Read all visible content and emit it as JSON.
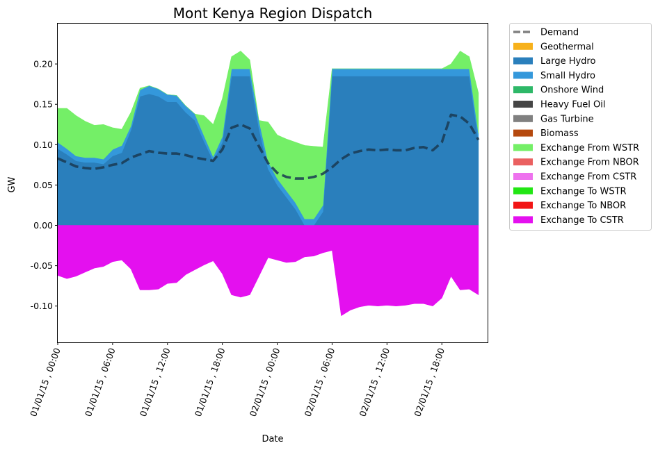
{
  "chart_data": {
    "type": "area",
    "title": "Mont Kenya Region Dispatch",
    "xlabel": "Date",
    "ylabel": "GW",
    "ylim": [
      -0.145,
      0.25
    ],
    "y_ticks": [
      -0.1,
      -0.05,
      0.0,
      0.05,
      0.1,
      0.15,
      0.2
    ],
    "x_ticks": [
      {
        "index": 0,
        "label": "01/01/15 , 00:00"
      },
      {
        "index": 6,
        "label": "01/01/15 , 06:00"
      },
      {
        "index": 12,
        "label": "01/01/15 , 12:00"
      },
      {
        "index": 18,
        "label": "01/01/15 , 18:00"
      },
      {
        "index": 24,
        "label": "02/01/15 , 00:00"
      },
      {
        "index": 30,
        "label": "02/01/15 , 06:00"
      },
      {
        "index": 36,
        "label": "02/01/15 , 12:00"
      },
      {
        "index": 42,
        "label": "02/01/15 , 18:00"
      }
    ],
    "x_range": [
      0,
      47
    ],
    "grid": false,
    "legend_position": "outside-right",
    "legend": [
      {
        "name": "Demand",
        "color": "#808080",
        "style": "dashed-line"
      },
      {
        "name": "Geothermal",
        "color": "#f7b11b",
        "style": "patch"
      },
      {
        "name": "Large Hydro",
        "color": "#2a7fbc",
        "style": "patch"
      },
      {
        "name": "Small Hydro",
        "color": "#3498db",
        "style": "patch"
      },
      {
        "name": "Onshore Wind",
        "color": "#2eb868",
        "style": "patch"
      },
      {
        "name": "Heavy Fuel Oil",
        "color": "#454545",
        "style": "patch"
      },
      {
        "name": "Gas Turbine",
        "color": "#808080",
        "style": "patch"
      },
      {
        "name": "Biomass",
        "color": "#b5490e",
        "style": "patch"
      },
      {
        "name": "Exchange From WSTR",
        "color": "#74ef67",
        "style": "patch"
      },
      {
        "name": "Exchange From NBOR",
        "color": "#ea6060",
        "style": "patch"
      },
      {
        "name": "Exchange From CSTR",
        "color": "#ee72ee",
        "style": "patch"
      },
      {
        "name": "Exchange To WSTR",
        "color": "#22e614",
        "style": "patch"
      },
      {
        "name": "Exchange To NBOR",
        "color": "#f21515",
        "style": "patch"
      },
      {
        "name": "Exchange To CSTR",
        "color": "#e410ef",
        "style": "patch"
      }
    ],
    "series": [
      {
        "name": "Large Hydro",
        "color": "#2a7fbc",
        "stack": "positive",
        "values": [
          0.095,
          0.088,
          0.08,
          0.078,
          0.078,
          0.076,
          0.086,
          0.09,
          0.118,
          0.16,
          0.163,
          0.16,
          0.153,
          0.153,
          0.14,
          0.13,
          0.104,
          0.08,
          0.103,
          0.185,
          0.185,
          0.185,
          0.12,
          0.07,
          0.05,
          0.035,
          0.02,
          0.0,
          0.0,
          0.017,
          0.185,
          0.185,
          0.185,
          0.185,
          0.185,
          0.185,
          0.185,
          0.185,
          0.185,
          0.185,
          0.185,
          0.185,
          0.185,
          0.185,
          0.185,
          0.185,
          0.105
        ]
      },
      {
        "name": "Small Hydro",
        "color": "#3498db",
        "stack": "positive",
        "values": [
          0.008,
          0.007,
          0.006,
          0.006,
          0.006,
          0.006,
          0.008,
          0.009,
          0.005,
          0.008,
          0.01,
          0.009,
          0.009,
          0.008,
          0.008,
          0.008,
          0.007,
          0.005,
          0.007,
          0.009,
          0.009,
          0.009,
          0.01,
          0.009,
          0.008,
          0.008,
          0.008,
          0.008,
          0.008,
          0.008,
          0.009,
          0.009,
          0.009,
          0.009,
          0.009,
          0.009,
          0.009,
          0.009,
          0.009,
          0.009,
          0.009,
          0.009,
          0.009,
          0.009,
          0.009,
          0.009,
          0.009
        ]
      },
      {
        "name": "Exchange From WSTR",
        "color": "#74ef67",
        "stack": "positive",
        "values": [
          0.042,
          0.05,
          0.05,
          0.045,
          0.04,
          0.043,
          0.027,
          0.02,
          0.017,
          0.002,
          0.0,
          0.0,
          0.0,
          0.0,
          0.0,
          0.0,
          0.025,
          0.04,
          0.047,
          0.015,
          0.022,
          0.011,
          0.0,
          0.049,
          0.054,
          0.064,
          0.075,
          0.091,
          0.09,
          0.072,
          0.0,
          0.0,
          0.0,
          0.0,
          0.0,
          0.0,
          0.0,
          0.0,
          0.0,
          0.0,
          0.0,
          0.0,
          0.0,
          0.006,
          0.022,
          0.015,
          0.05
        ]
      },
      {
        "name": "Exchange To CSTR",
        "color": "#e410ef",
        "stack": "negative",
        "values": [
          -0.062,
          -0.066,
          -0.063,
          -0.058,
          -0.053,
          -0.051,
          -0.045,
          -0.043,
          -0.054,
          -0.08,
          -0.08,
          -0.079,
          -0.072,
          -0.071,
          -0.061,
          -0.055,
          -0.049,
          -0.044,
          -0.06,
          -0.086,
          -0.089,
          -0.086,
          -0.063,
          -0.04,
          -0.043,
          -0.046,
          -0.045,
          -0.039,
          -0.038,
          -0.034,
          -0.031,
          -0.112,
          -0.105,
          -0.101,
          -0.099,
          -0.1,
          -0.099,
          -0.1,
          -0.099,
          -0.097,
          -0.097,
          -0.1,
          -0.09,
          -0.063,
          -0.08,
          -0.079,
          -0.086
        ]
      },
      {
        "name": "Demand",
        "color": "#1a3a52",
        "type": "line",
        "values": [
          0.083,
          0.078,
          0.073,
          0.071,
          0.07,
          0.072,
          0.075,
          0.077,
          0.084,
          0.088,
          0.092,
          0.09,
          0.089,
          0.089,
          0.087,
          0.084,
          0.082,
          0.08,
          0.094,
          0.121,
          0.125,
          0.12,
          0.098,
          0.077,
          0.065,
          0.06,
          0.058,
          0.058,
          0.06,
          0.064,
          0.072,
          0.082,
          0.089,
          0.092,
          0.094,
          0.093,
          0.094,
          0.093,
          0.093,
          0.096,
          0.097,
          0.093,
          0.103,
          0.137,
          0.135,
          0.126,
          0.106
        ]
      }
    ]
  }
}
